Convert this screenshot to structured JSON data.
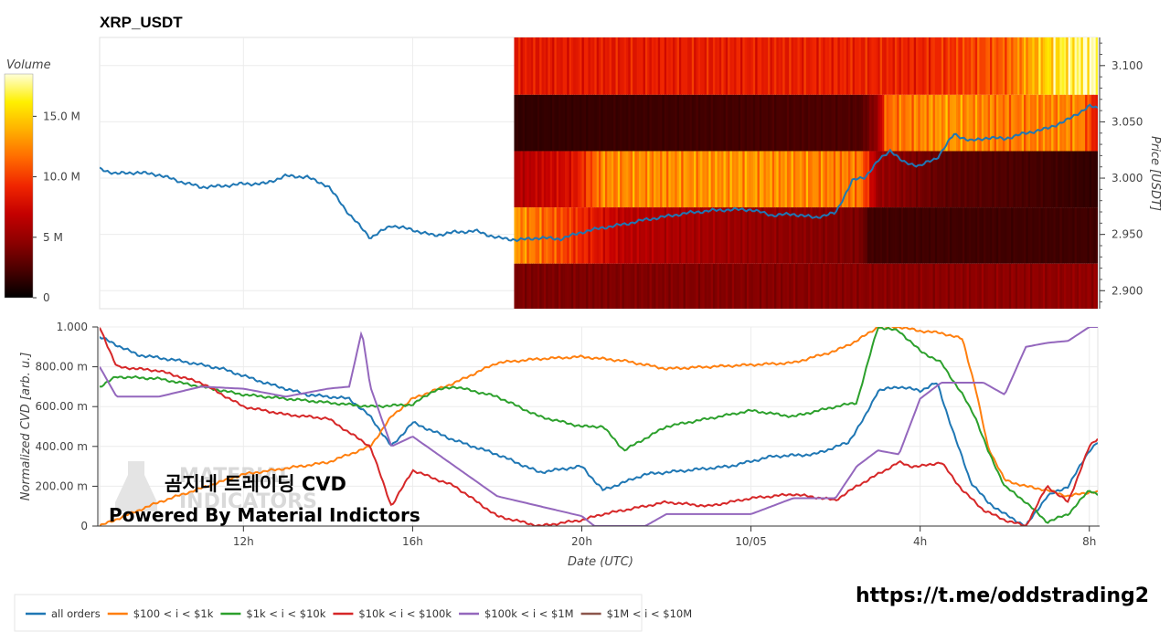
{
  "title": "XRP_USDT",
  "colorbar": {
    "label": "Volume",
    "ticks": [
      "15.0 M",
      "10.0 M",
      "5 M",
      "0"
    ],
    "tick_values": [
      15,
      10,
      5,
      0
    ],
    "max": 18.5,
    "colors": [
      "#000000",
      "#4a0000",
      "#8e0000",
      "#c40000",
      "#f02500",
      "#ff6a00",
      "#ffb000",
      "#fff000",
      "#ffffd8"
    ]
  },
  "price_axis": {
    "label": "Price [USDT]",
    "ticks": [
      "3.100",
      "3.050",
      "3.000",
      "2.950",
      "2.900"
    ],
    "tick_values": [
      3.1,
      3.05,
      3.0,
      2.95,
      2.9
    ],
    "range": [
      2.884,
      3.125
    ]
  },
  "time_axis": {
    "label": "Date (UTC)",
    "ticks": [
      "12h",
      "16h",
      "20h",
      "10/05",
      "4h",
      "8h"
    ],
    "tick_hours": [
      12,
      16,
      20,
      24,
      28,
      32
    ],
    "range": [
      8.6,
      32.2
    ]
  },
  "cvd_axis": {
    "label": "Normalized CVD [arb. u.]",
    "ticks": [
      "1.000",
      "800.00 m",
      "600.00 m",
      "400.00 m",
      "200.00 m",
      "0"
    ],
    "tick_values": [
      1.0,
      0.8,
      0.6,
      0.4,
      0.2,
      0.0
    ],
    "range": [
      0,
      1.0
    ]
  },
  "overlay": {
    "line1": "곰지네 트레이딩 CVD",
    "line2": "Powered By Material Indictors",
    "watermark1": "MATERIAL",
    "watermark2": "INDICATORS"
  },
  "url": "https://t.me/oddstrading2",
  "legend": [
    {
      "label": "all orders",
      "color": "#1f77b4"
    },
    {
      "label": "$100 < i < $1k",
      "color": "#ff7f0e"
    },
    {
      "label": "$1k < i < $10k",
      "color": "#2ca02c"
    },
    {
      "label": "$10k < i < $100k",
      "color": "#d62728"
    },
    {
      "label": "$100k < i < $1M",
      "color": "#9467bd"
    },
    {
      "label": "$1M < i < $10M",
      "color": "#8c564b"
    }
  ],
  "chart_data": [
    {
      "type": "heatmap",
      "title": "XRP_USDT",
      "x_range_hours": [
        18.4,
        32.2
      ],
      "price_bins": [
        {
          "low": 3.074,
          "high": 3.125
        },
        {
          "low": 3.024,
          "high": 3.074
        },
        {
          "low": 2.974,
          "high": 3.024
        },
        {
          "low": 2.924,
          "high": 2.974
        },
        {
          "low": 2.884,
          "high": 2.924
        }
      ],
      "volume_profile_M": [
        [
          [
            18.4,
            8.5
          ],
          [
            24.0,
            8.8
          ],
          [
            28.0,
            9.0
          ],
          [
            30.0,
            11.0
          ],
          [
            31.2,
            16.0
          ],
          [
            32.2,
            18.0
          ]
        ],
        [
          [
            18.4,
            1.5
          ],
          [
            26.6,
            2.5
          ],
          [
            27.0,
            5.0
          ],
          [
            27.2,
            11.5
          ],
          [
            28.6,
            13.0
          ],
          [
            30.0,
            12.0
          ],
          [
            31.8,
            12.5
          ],
          [
            32.2,
            8.0
          ]
        ],
        [
          [
            18.4,
            6.0
          ],
          [
            19.8,
            8.0
          ],
          [
            20.5,
            12.5
          ],
          [
            24.0,
            13.0
          ],
          [
            26.6,
            12.0
          ],
          [
            27.0,
            5.0
          ],
          [
            28.6,
            3.0
          ],
          [
            30.0,
            2.5
          ],
          [
            32.2,
            1.5
          ]
        ],
        [
          [
            18.4,
            13.0
          ],
          [
            19.3,
            11.0
          ],
          [
            21.0,
            6.5
          ],
          [
            24.0,
            5.0
          ],
          [
            26.6,
            4.0
          ],
          [
            26.8,
            2.0
          ],
          [
            32.2,
            2.0
          ]
        ],
        [
          [
            18.4,
            4.0
          ],
          [
            32.2,
            4.8
          ]
        ]
      ]
    },
    {
      "type": "line",
      "series": [
        {
          "name": "all orders",
          "x": [
            8.6,
            9.0,
            9.5,
            10.0,
            10.5,
            11.0,
            11.5,
            12.0,
            12.5,
            13.0,
            13.5,
            14.0,
            14.5,
            15.0,
            15.5,
            16.0,
            16.5,
            17.0,
            17.5,
            18.0,
            18.5,
            19.0,
            19.5,
            20.0,
            20.5,
            21.0,
            21.5,
            22.0,
            22.5,
            23.0,
            23.5,
            24.0,
            24.5,
            25.0,
            25.5,
            26.0,
            26.4,
            26.7,
            27.0,
            27.3,
            27.6,
            28.0,
            28.4,
            28.8,
            29.2,
            29.6,
            30.0,
            30.5,
            31.0,
            31.5,
            32.0,
            32.2
          ],
          "y": [
            3.008,
            3.004,
            3.005,
            3.003,
            2.997,
            2.992,
            2.993,
            2.995,
            2.995,
            3.002,
            3.001,
            2.993,
            2.968,
            2.947,
            2.958,
            2.954,
            2.949,
            2.952,
            2.953,
            2.947,
            2.945,
            2.947,
            2.946,
            2.952,
            2.956,
            2.959,
            2.963,
            2.966,
            2.969,
            2.971,
            2.972,
            2.972,
            2.967,
            2.968,
            2.965,
            2.969,
            2.998,
            3.001,
            3.015,
            3.025,
            3.014,
            3.011,
            3.018,
            3.039,
            3.033,
            3.036,
            3.035,
            3.04,
            3.044,
            3.052,
            3.064,
            3.062
          ]
        },
        {
          "name": "$100 < i < $1k",
          "x": [
            8.6,
            10.0,
            12.0,
            14.0,
            15.0,
            15.5,
            16.0,
            17.0,
            18.0,
            19.0,
            20.0,
            21.0,
            22.0,
            23.0,
            24.0,
            25.0,
            26.0,
            26.5,
            27.0,
            27.5,
            28.0,
            28.5,
            29.0,
            29.3,
            29.6,
            30.0,
            30.5,
            31.0,
            31.5,
            32.0,
            32.2
          ],
          "y": [
            0.0,
            0.12,
            0.26,
            0.32,
            0.4,
            0.55,
            0.64,
            0.72,
            0.82,
            0.84,
            0.85,
            0.83,
            0.79,
            0.8,
            0.81,
            0.82,
            0.88,
            0.93,
            1.0,
            1.0,
            0.98,
            0.97,
            0.94,
            0.7,
            0.4,
            0.23,
            0.2,
            0.18,
            0.15,
            0.17,
            0.17
          ]
        },
        {
          "name": "$1k < i < $10k",
          "x": [
            8.6,
            9.0,
            10.0,
            11.0,
            12.0,
            13.0,
            14.0,
            15.0,
            16.0,
            16.5,
            17.0,
            18.0,
            19.0,
            20.0,
            20.5,
            21.0,
            21.5,
            22.0,
            23.0,
            24.0,
            25.0,
            26.0,
            26.5,
            27.0,
            27.5,
            28.0,
            28.5,
            29.0,
            29.3,
            29.6,
            30.0,
            30.5,
            31.0,
            31.5,
            32.0,
            32.2
          ],
          "y": [
            0.7,
            0.75,
            0.74,
            0.7,
            0.66,
            0.64,
            0.62,
            0.6,
            0.61,
            0.68,
            0.7,
            0.65,
            0.55,
            0.5,
            0.5,
            0.38,
            0.44,
            0.5,
            0.54,
            0.58,
            0.55,
            0.6,
            0.62,
            1.0,
            0.98,
            0.88,
            0.82,
            0.66,
            0.55,
            0.38,
            0.2,
            0.12,
            0.02,
            0.06,
            0.18,
            0.16
          ]
        },
        {
          "name": "$10k < i < $100k",
          "x": [
            8.6,
            9.0,
            10.0,
            11.0,
            12.0,
            13.0,
            14.0,
            15.0,
            15.5,
            16.0,
            17.0,
            18.0,
            19.0,
            20.0,
            20.5,
            21.0,
            22.0,
            23.0,
            24.0,
            25.0,
            26.0,
            26.5,
            27.0,
            27.5,
            27.8,
            28.0,
            28.5,
            29.0,
            29.5,
            30.0,
            30.5,
            31.0,
            31.5,
            32.0,
            32.2
          ],
          "y": [
            1.0,
            0.8,
            0.78,
            0.72,
            0.6,
            0.56,
            0.54,
            0.4,
            0.1,
            0.28,
            0.2,
            0.05,
            0.0,
            0.03,
            0.06,
            0.08,
            0.12,
            0.1,
            0.14,
            0.16,
            0.13,
            0.2,
            0.26,
            0.32,
            0.3,
            0.3,
            0.32,
            0.18,
            0.08,
            0.03,
            0.0,
            0.2,
            0.12,
            0.4,
            0.44
          ]
        },
        {
          "name": "$100k < i < $1M",
          "x": [
            8.6,
            9.0,
            10.0,
            11.0,
            12.0,
            13.0,
            14.0,
            14.5,
            14.8,
            15.0,
            15.5,
            16.0,
            17.0,
            18.0,
            19.0,
            20.0,
            20.3,
            21.0,
            21.5,
            22.0,
            23.0,
            24.0,
            25.0,
            26.0,
            26.5,
            27.0,
            27.5,
            28.0,
            28.5,
            29.0,
            29.5,
            30.0,
            30.5,
            31.0,
            31.5,
            32.0,
            32.2
          ],
          "y": [
            0.8,
            0.65,
            0.65,
            0.7,
            0.69,
            0.65,
            0.69,
            0.7,
            0.98,
            0.7,
            0.4,
            0.45,
            0.3,
            0.15,
            0.1,
            0.05,
            0.0,
            0.0,
            0.0,
            0.06,
            0.06,
            0.06,
            0.14,
            0.14,
            0.3,
            0.38,
            0.36,
            0.64,
            0.72,
            0.72,
            0.72,
            0.66,
            0.9,
            0.92,
            0.93,
            1.0,
            1.0
          ]
        },
        {
          "name": "$1M < i < $10M",
          "x": [],
          "y": []
        }
      ]
    }
  ]
}
